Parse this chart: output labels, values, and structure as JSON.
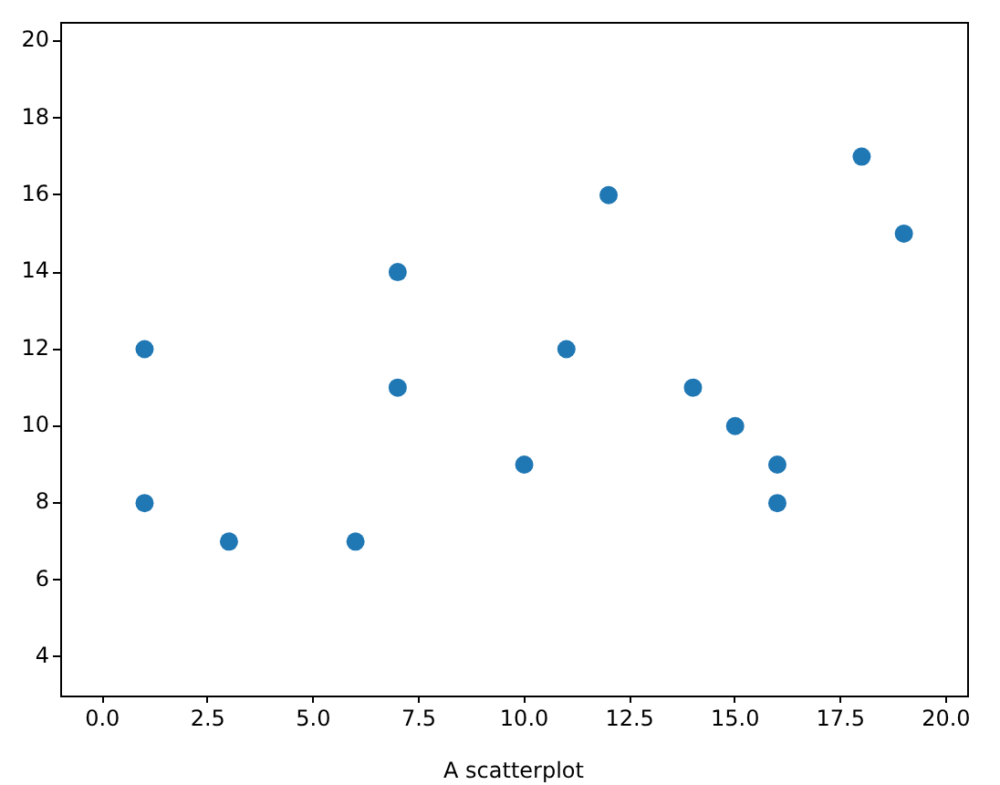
{
  "chart_data": {
    "type": "scatter",
    "xlabel": "A scatterplot",
    "x": [
      1,
      1,
      3,
      6,
      7,
      7,
      10,
      11,
      12,
      14,
      15,
      16,
      16,
      18,
      19
    ],
    "values": [
      12,
      8,
      7,
      7,
      14,
      11,
      9,
      12,
      16,
      11,
      10,
      9,
      8,
      17,
      15
    ],
    "color": "#1f77b4",
    "marker": "circle",
    "xlim": [
      -1,
      20.5
    ],
    "ylim": [
      3,
      20.5
    ],
    "xticks": [
      {
        "value": 0,
        "label": "0.0"
      },
      {
        "value": 2.5,
        "label": "2.5"
      },
      {
        "value": 5,
        "label": "5.0"
      },
      {
        "value": 7.5,
        "label": "7.5"
      },
      {
        "value": 10,
        "label": "10.0"
      },
      {
        "value": 12.5,
        "label": "12.5"
      },
      {
        "value": 15,
        "label": "15.0"
      },
      {
        "value": 17.5,
        "label": "17.5"
      },
      {
        "value": 20,
        "label": "20.0"
      }
    ],
    "yticks": [
      4,
      6,
      8,
      10,
      12,
      14,
      16,
      18,
      20
    ]
  }
}
